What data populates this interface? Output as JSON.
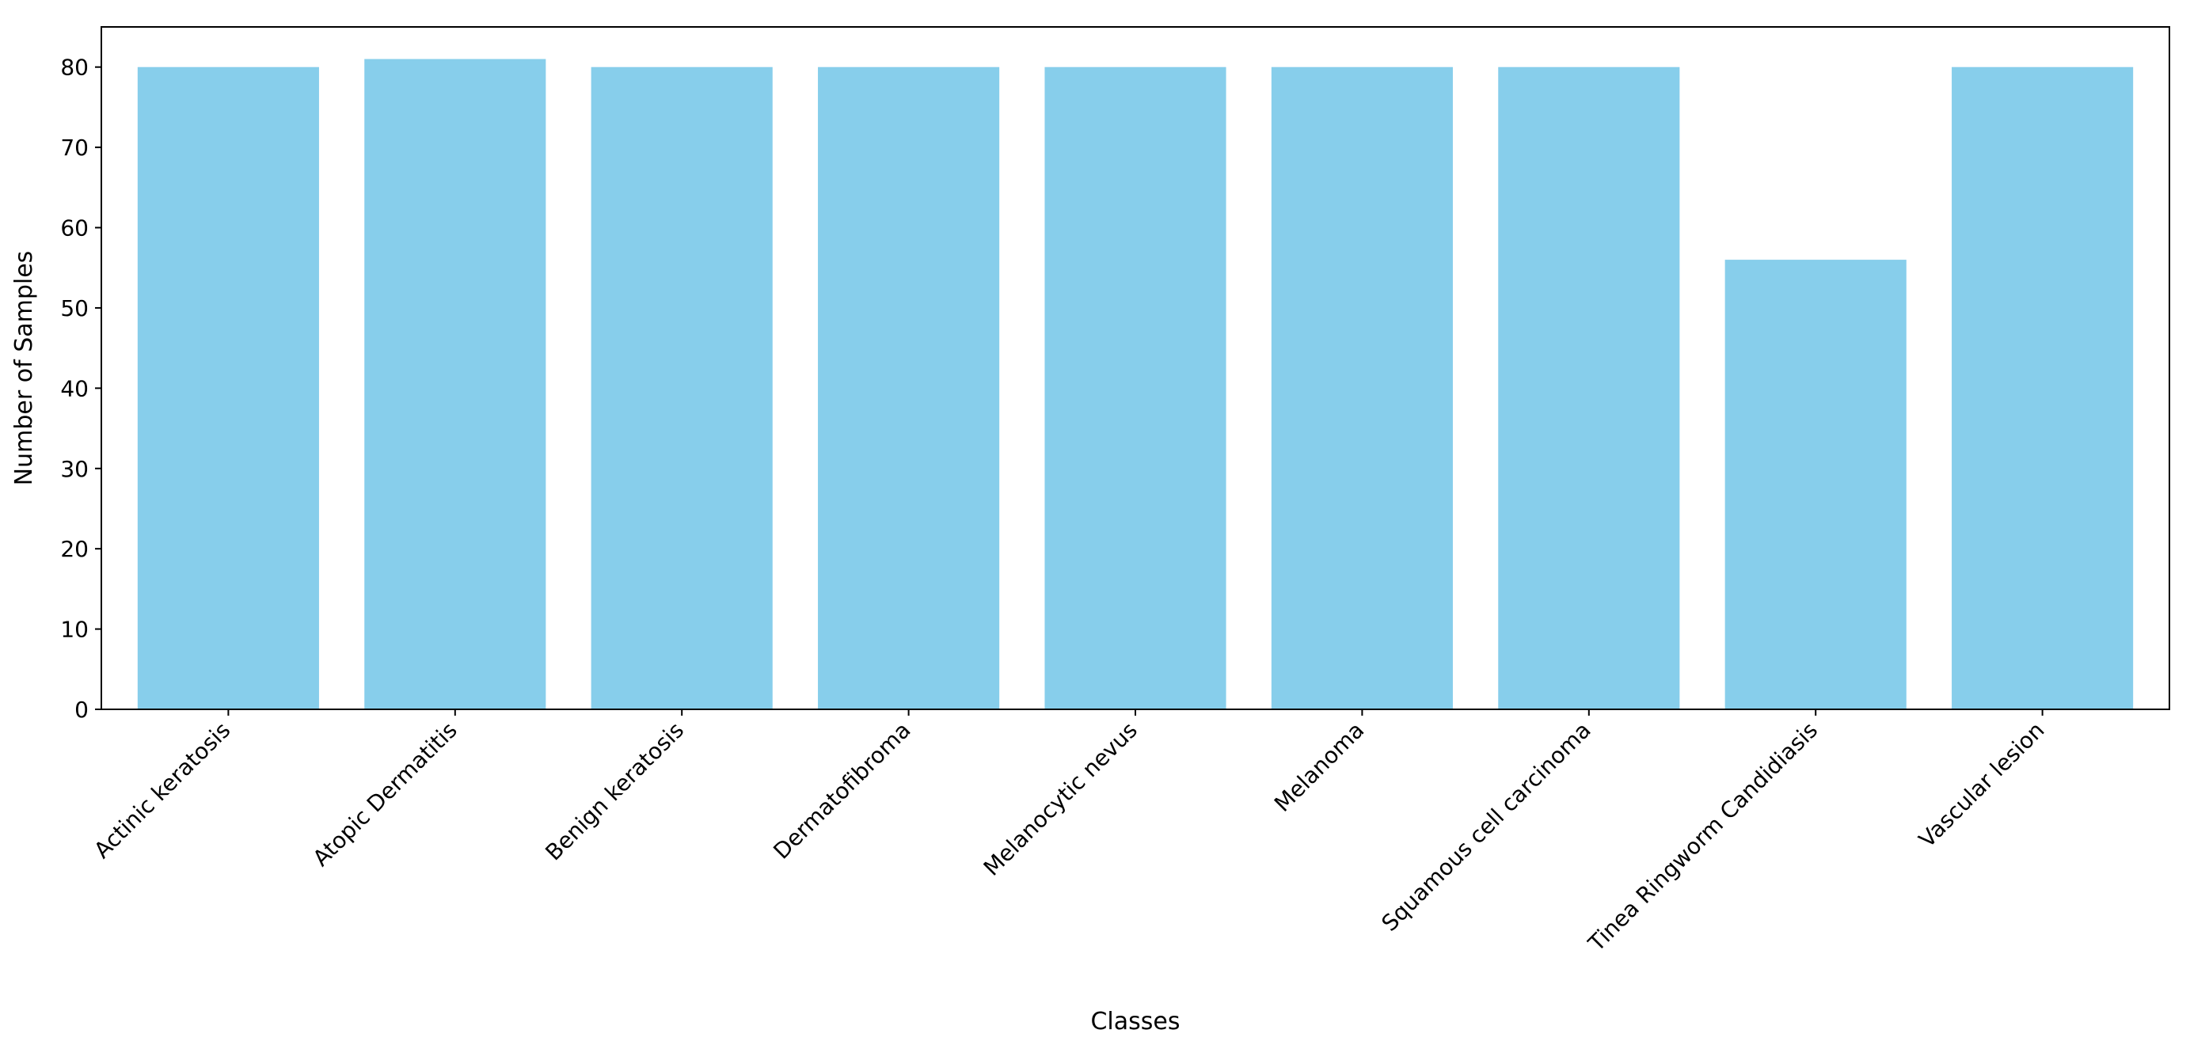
{
  "chart_data": {
    "type": "bar",
    "title": "",
    "xlabel": "Classes",
    "ylabel": "Number of Samples",
    "categories": [
      "Actinic keratosis",
      "Atopic Dermatitis",
      "Benign keratosis",
      "Dermatofibroma",
      "Melanocytic nevus",
      "Melanoma",
      "Squamous cell carcinoma",
      "Tinea Ringworm Candidiasis",
      "Vascular lesion"
    ],
    "values": [
      80,
      81,
      80,
      80,
      80,
      80,
      80,
      56,
      80
    ],
    "ylim": [
      0,
      85
    ],
    "yticks": [
      0,
      10,
      20,
      30,
      40,
      50,
      60,
      70,
      80
    ],
    "grid": false,
    "legend": "none",
    "bar_color": "#87CEEB"
  }
}
